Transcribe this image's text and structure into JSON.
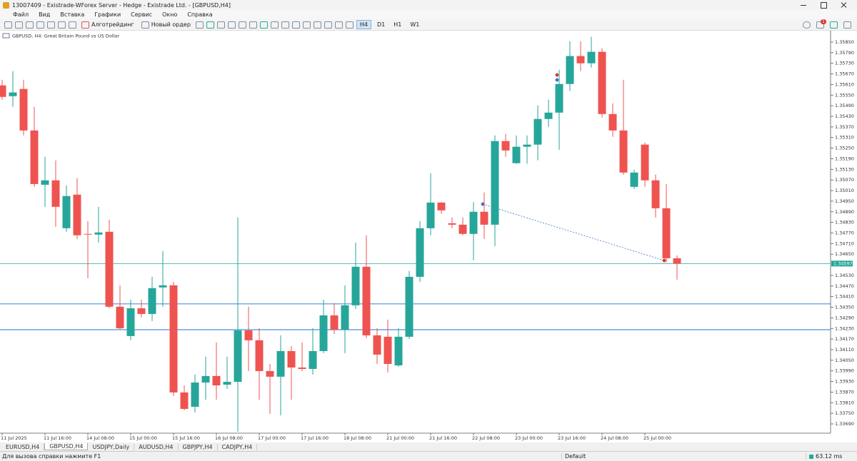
{
  "window": {
    "title": "13007409 - Existrade-WForex Server - Hedge - Existrade Ltd. - [GBPUSD,H4]"
  },
  "menu": [
    "Файл",
    "Вид",
    "Вставка",
    "Графики",
    "Сервис",
    "Окно",
    "Справка"
  ],
  "toolbar": {
    "algo": "Алготрейдинг",
    "order": "Новый ордер",
    "timeframes": [
      "H4",
      "D1",
      "H1",
      "W1"
    ],
    "badge": "1"
  },
  "tabs": [
    "EURUSD,H4",
    "GBPUSD,H4",
    "USDJPY,Daily",
    "AUDUSD,H4",
    "GBPJPY,H4",
    "CADJPY,H4"
  ],
  "status": {
    "help": "Для вызова справки нажмите F1",
    "profile": "Default",
    "ping": "63.12 ms"
  },
  "chart_data": {
    "type": "candlestick",
    "title": "GBPUSD, H4:  Great Britain Pound vs US Dollar",
    "up_color": "#26a69a",
    "down_color": "#ef5350",
    "level_color": "#4a90d9",
    "categories": [
      "11 Jul 2025",
      null,
      null,
      null,
      "11 Jul 16:00",
      null,
      null,
      null,
      "14 Jul 08:00",
      null,
      null,
      null,
      "15 Jul 00:00",
      null,
      null,
      null,
      "15 Jul 16:00",
      null,
      null,
      null,
      "16 Jul 08:00",
      null,
      null,
      null,
      "17 Jul 00:00",
      null,
      null,
      null,
      "17 Jul 16:00",
      null,
      null,
      null,
      "18 Jul 08:00",
      null,
      null,
      null,
      "21 Jul 00:00",
      null,
      null,
      null,
      "21 Jul 16:00",
      null,
      null,
      null,
      "22 Jul 08:00",
      null,
      null,
      null,
      "23 Jul 00:00",
      null,
      null,
      null,
      "23 Jul 16:00",
      null,
      null,
      null,
      "24 Jul 08:00",
      null,
      null,
      null,
      "25 Jul 00:00",
      null,
      null,
      null
    ],
    "open": [
      1.35605,
      1.35544,
      1.35585,
      1.3535,
      1.35043,
      1.35068,
      1.34797,
      1.34987,
      1.34765,
      1.34761,
      1.34777,
      1.34353,
      1.34187,
      1.34344,
      1.34312,
      1.34462,
      1.34474,
      1.33868,
      1.33787,
      1.33924,
      1.33961,
      1.33912,
      1.33928,
      1.34219,
      1.34163,
      1.33989,
      1.33957,
      1.34102,
      1.34009,
      1.34001,
      1.34102,
      1.34304,
      1.34223,
      1.34361,
      1.34579,
      1.34191,
      1.34183,
      1.34021,
      1.34183,
      1.34522,
      1.34797,
      1.34942,
      1.34825,
      1.34817,
      1.34765,
      1.3489,
      1.34817,
      1.3529,
      1.35165,
      1.35258,
      1.3527,
      1.35415,
      1.35451,
      1.35613,
      1.35771,
      1.3573,
      1.35795,
      1.35443,
      1.3535,
      1.35031,
      1.3527,
      1.35068,
      1.3491,
      1.34627
    ],
    "high": [
      1.35637,
      1.35686,
      1.35637,
      1.35484,
      1.35201,
      1.35181,
      1.35039,
      1.3508,
      1.34837,
      1.34918,
      1.34845,
      1.34474,
      1.34393,
      1.34393,
      1.34522,
      1.34668,
      1.34494,
      1.33908,
      1.33969,
      1.3407,
      1.34151,
      1.3407,
      1.34858,
      1.34353,
      1.34231,
      1.34029,
      1.34191,
      1.3413,
      1.34151,
      1.34231,
      1.34393,
      1.34373,
      1.34474,
      1.34716,
      1.34757,
      1.34231,
      1.3428,
      1.34231,
      1.34555,
      1.34837,
      1.35108,
      1.34946,
      1.34858,
      1.34858,
      1.34946,
      1.34999,
      1.35322,
      1.3533,
      1.35322,
      1.35322,
      1.35492,
      1.35524,
      1.35694,
      1.35855,
      1.35855,
      1.3588,
      1.35815,
      1.35504,
      1.35637,
      1.35128,
      1.35282,
      1.351,
      1.35047,
      1.34643
    ],
    "low": [
      1.35524,
      1.35484,
      1.35322,
      1.35031,
      1.34918,
      1.34805,
      1.34777,
      1.34736,
      1.34514,
      1.34716,
      1.34344,
      1.34223,
      1.34163,
      1.34292,
      1.34272,
      1.34353,
      1.33848,
      1.33767,
      1.33755,
      1.33827,
      1.33827,
      1.33888,
      1.33646,
      1.33989,
      1.33827,
      1.33747,
      1.33738,
      1.33827,
      1.33989,
      1.33969,
      1.3409,
      1.34199,
      1.3409,
      1.3434,
      1.34175,
      1.34029,
      1.33981,
      1.34013,
      1.34171,
      1.34494,
      1.34757,
      1.34878,
      1.34797,
      1.34757,
      1.34615,
      1.34736,
      1.34696,
      1.35201,
      1.35161,
      1.35161,
      1.35181,
      1.35371,
      1.35241,
      1.35573,
      1.35686,
      1.35706,
      1.35423,
      1.35314,
      1.351,
      1.35019,
      1.35031,
      1.34858,
      1.34603,
      1.34506
    ],
    "close": [
      1.3554,
      1.35565,
      1.3535,
      1.35047,
      1.35068,
      1.34918,
      1.34979,
      1.34757,
      1.34761,
      1.34773,
      1.34353,
      1.34231,
      1.34344,
      1.34312,
      1.34458,
      1.34474,
      1.33868,
      1.33775,
      1.33924,
      1.33961,
      1.33908,
      1.33928,
      1.34219,
      1.34163,
      1.33989,
      1.33957,
      1.34102,
      1.34009,
      1.34001,
      1.34102,
      1.34304,
      1.34223,
      1.34361,
      1.34579,
      1.34191,
      1.34082,
      1.34029,
      1.34183,
      1.34522,
      1.34797,
      1.34942,
      1.34898,
      1.34817,
      1.34765,
      1.3489,
      1.34817,
      1.3529,
      1.35237,
      1.35258,
      1.3527,
      1.35415,
      1.35451,
      1.35613,
      1.35771,
      1.3573,
      1.35795,
      1.35443,
      1.3535,
      1.35112,
      1.35112,
      1.35068,
      1.3491,
      1.34627,
      1.34597
    ],
    "levels": [
      1.34369,
      1.34223
    ],
    "last_price": {
      "value": 1.34597,
      "label": "1.34597"
    },
    "ylim": [
      1.3364,
      1.359
    ],
    "yticks": [
      {
        "value": 1.3369,
        "label": "1.33690"
      },
      {
        "value": 1.3375,
        "label": "1.33750"
      },
      {
        "value": 1.3381,
        "label": "1.33810"
      },
      {
        "value": 1.3387,
        "label": "1.33870"
      },
      {
        "value": 1.3393,
        "label": "1.33930"
      },
      {
        "value": 1.3399,
        "label": "1.33990"
      },
      {
        "value": 1.3405,
        "label": "1.34050"
      },
      {
        "value": 1.3411,
        "label": "1.34110"
      },
      {
        "value": 1.3417,
        "label": "1.34170"
      },
      {
        "value": 1.3423,
        "label": "1.34230"
      },
      {
        "value": 1.3429,
        "label": "1.34290"
      },
      {
        "value": 1.3435,
        "label": "1.34350"
      },
      {
        "value": 1.3441,
        "label": "1.34410"
      },
      {
        "value": 1.3447,
        "label": "1.34470"
      },
      {
        "value": 1.3453,
        "label": "1.34530"
      },
      {
        "value": 1.3465,
        "label": "1.34650"
      },
      {
        "value": 1.3471,
        "label": "1.34710"
      },
      {
        "value": 1.3477,
        "label": "1.34770"
      },
      {
        "value": 1.3483,
        "label": "1.34830"
      },
      {
        "value": 1.3489,
        "label": "1.34890"
      },
      {
        "value": 1.3495,
        "label": "1.34950"
      },
      {
        "value": 1.3501,
        "label": "1.35010"
      },
      {
        "value": 1.3507,
        "label": "1.35070"
      },
      {
        "value": 1.3513,
        "label": "1.35130"
      },
      {
        "value": 1.3519,
        "label": "1.35190"
      },
      {
        "value": 1.3525,
        "label": "1.35250"
      },
      {
        "value": 1.3531,
        "label": "1.35310"
      },
      {
        "value": 1.3537,
        "label": "1.35370"
      },
      {
        "value": 1.3543,
        "label": "1.35430"
      },
      {
        "value": 1.3549,
        "label": "1.35490"
      },
      {
        "value": 1.3555,
        "label": "1.35550"
      },
      {
        "value": 1.3561,
        "label": "1.35610"
      },
      {
        "value": 1.3567,
        "label": "1.35670"
      },
      {
        "value": 1.3573,
        "label": "1.35730"
      },
      {
        "value": 1.3579,
        "label": "1.35790"
      },
      {
        "value": 1.3585,
        "label": "1.35850"
      }
    ]
  }
}
